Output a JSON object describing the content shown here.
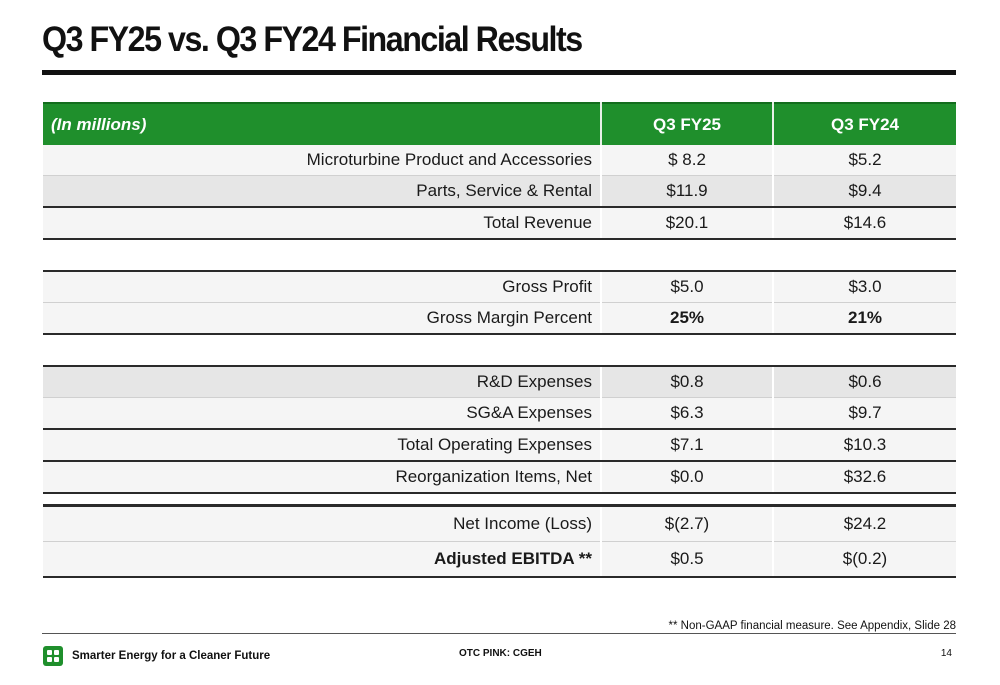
{
  "title": "Q3 FY25 vs. Q3 FY24 Financial Results",
  "table": {
    "header": {
      "units": "(In millions)",
      "col1": "Q3 FY25",
      "col2": "Q3 FY24"
    },
    "rows": [
      {
        "label": "Microturbine Product and Accessories",
        "fy25": "$ 8.2",
        "fy24": "$5.2"
      },
      {
        "label": "Parts, Service & Rental",
        "fy25": "$11.9",
        "fy24": "$9.4"
      },
      {
        "label": "Total Revenue",
        "fy25": "$20.1",
        "fy24": "$14.6"
      },
      {
        "label": "Gross Profit",
        "fy25": "$5.0",
        "fy24": "$3.0"
      },
      {
        "label": "Gross Margin Percent",
        "fy25": "25%",
        "fy24": "21%"
      },
      {
        "label": "R&D Expenses",
        "fy25": "$0.8",
        "fy24": "$0.6"
      },
      {
        "label": "SG&A Expenses",
        "fy25": "$6.3",
        "fy24": "$9.7"
      },
      {
        "label": "Total Operating Expenses",
        "fy25": "$7.1",
        "fy24": "$10.3"
      },
      {
        "label": "Reorganization Items, Net",
        "fy25": "$0.0",
        "fy24": "$32.6"
      },
      {
        "label": "Net Income (Loss)",
        "fy25": "$(2.7)",
        "fy24": "$24.2"
      },
      {
        "label": "Adjusted EBITDA **",
        "fy25": "$0.5",
        "fy24": "$(0.2)"
      }
    ]
  },
  "footnote": "** Non-GAAP financial measure. See Appendix, Slide 28",
  "footer": {
    "tagline": "Smarter Energy for a Cleaner Future",
    "ticker": "OTC PINK: CGEH",
    "page": "14"
  },
  "colors": {
    "accent": "#1f8f2c",
    "rule": "#111111",
    "row_shade": "#e6e6e6"
  }
}
